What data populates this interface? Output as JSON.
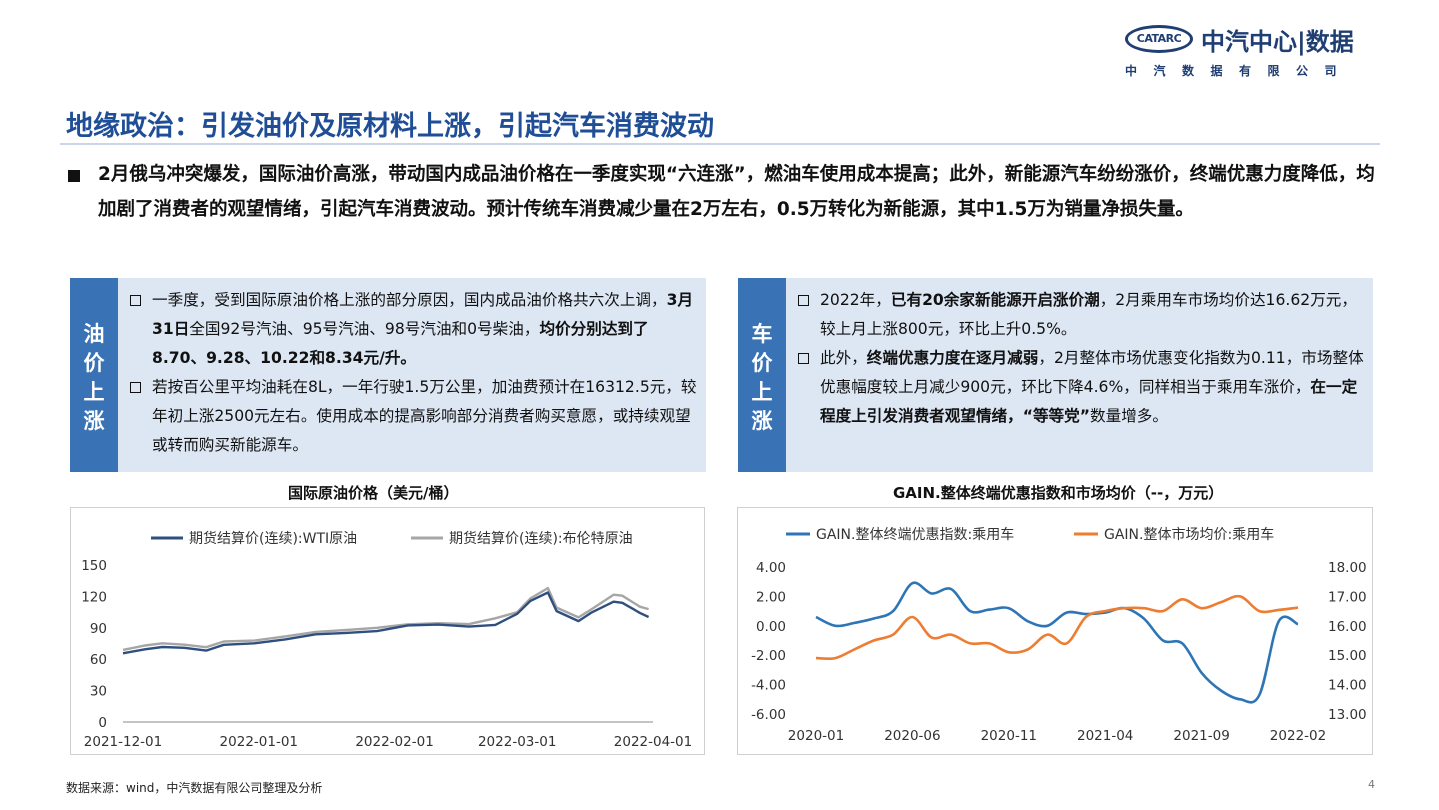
{
  "header": {
    "logo_mark": "CATARC",
    "brand": "中汽中心|数据",
    "subtitle": "中汽数据有限公司"
  },
  "title": "地缘政治：引发油价及原材料上涨，引起汽车消费波动",
  "intro": "2月俄乌冲突爆发，国际油价高涨，带动国内成品油价格在一季度实现“六连涨”，燃油车使用成本提高；此外，新能源汽车纷纷涨价，终端优惠力度降低，均加剧了消费者的观望情绪，引起汽车消费波动。预计传统车消费减少量在2万左右，0.5万转化为新能源，其中1.5万为销量净损失量。",
  "panels": {
    "oil": {
      "side": [
        "油",
        "价",
        "上",
        "涨"
      ],
      "p1_a": "一季度，受到国际原油价格上涨的部分原因，国内成品油价格共六次上调，",
      "p1_b": "3月31日",
      "p1_c": "全国92号汽油、95号汽油、98号汽油和0号柴油，",
      "p1_d": "均价分别达到了8.70、9.28、10.22和8.34元/升。",
      "p2": "若按百公里平均油耗在8L，一年行驶1.5万公里，加油费预计在16312.5元，较年初上涨2500元左右。使用成本的提高影响部分消费者购买意愿，或持续观望或转而购买新能源车。"
    },
    "car": {
      "side": [
        "车",
        "价",
        "上",
        "涨"
      ],
      "p1_a": "2022年，",
      "p1_b": "已有20余家新能源开启涨价潮",
      "p1_c": "，2月乘用车市场均价达16.62万元，较上月上涨800元，环比上升0.5%。",
      "p2_a": "此外，",
      "p2_b": "终端优惠力度在逐月减弱",
      "p2_c": "，2月整体市场优惠变化指数为0.11，市场整体优惠幅度较上月减少900元，环比下降4.6%，同样相当于乘用车涨价，",
      "p2_d": "在一定程度上引发消费者观望情绪，“等等党”",
      "p2_e": "数量增多。"
    }
  },
  "chart_data": [
    {
      "type": "line",
      "title": "国际原油价格（美元/桶）",
      "x_ticks": [
        "2021-12-01",
        "2022-01-01",
        "2022-02-01",
        "2022-03-01",
        "2022-04-01"
      ],
      "ylim": [
        0,
        150
      ],
      "y_ticks": [
        0,
        30,
        60,
        90,
        120,
        150
      ],
      "legend_position": "top",
      "series": [
        {
          "name": "期货结算价(连续):WTI原油",
          "color": "#2f4f7f",
          "dates": [
            "2021-12-01",
            "2021-12-06",
            "2021-12-10",
            "2021-12-15",
            "2021-12-20",
            "2021-12-24",
            "2021-12-31",
            "2022-01-07",
            "2022-01-14",
            "2022-01-21",
            "2022-01-28",
            "2022-02-04",
            "2022-02-11",
            "2022-02-18",
            "2022-02-24",
            "2022-03-01",
            "2022-03-04",
            "2022-03-08",
            "2022-03-10",
            "2022-03-15",
            "2022-03-18",
            "2022-03-23",
            "2022-03-25",
            "2022-03-29",
            "2022-03-31"
          ],
          "values": [
            65.6,
            69.5,
            71.7,
            70.9,
            68.2,
            73.8,
            75.2,
            78.9,
            83.8,
            85.1,
            86.8,
            92.3,
            93.1,
            91.1,
            92.8,
            103.4,
            115.7,
            123.7,
            106.0,
            96.4,
            104.7,
            114.9,
            113.9,
            104.2,
            100.3
          ]
        },
        {
          "name": "期货结算价(连续):布伦特原油",
          "color": "#a6a6a6",
          "dates": [
            "2021-12-01",
            "2021-12-06",
            "2021-12-10",
            "2021-12-15",
            "2021-12-20",
            "2021-12-24",
            "2021-12-31",
            "2022-01-07",
            "2022-01-14",
            "2022-01-21",
            "2022-01-28",
            "2022-02-04",
            "2022-02-11",
            "2022-02-18",
            "2022-02-24",
            "2022-03-01",
            "2022-03-04",
            "2022-03-08",
            "2022-03-10",
            "2022-03-15",
            "2022-03-18",
            "2022-03-23",
            "2022-03-25",
            "2022-03-29",
            "2022-03-31"
          ],
          "values": [
            68.9,
            73.1,
            75.2,
            73.9,
            71.5,
            76.9,
            77.8,
            81.8,
            86.1,
            87.9,
            90.0,
            93.3,
            94.4,
            93.5,
            99.1,
            104.9,
            118.1,
            127.9,
            109.3,
            99.9,
            107.9,
            121.6,
            120.7,
            110.2,
            107.9
          ]
        }
      ]
    },
    {
      "type": "line",
      "title": "GAIN.整体终端优惠指数和市场均价（--，万元）",
      "x_ticks": [
        "2020-01",
        "2020-06",
        "2020-11",
        "2021-04",
        "2021-09",
        "2022-02"
      ],
      "y_left": {
        "ticks": [
          "4.00",
          "2.00",
          "0.00",
          "-2.00",
          "-4.00",
          "-6.00"
        ],
        "range": [
          -6,
          4
        ]
      },
      "y_right": {
        "ticks": [
          "18.00",
          "17.00",
          "16.00",
          "15.00",
          "14.00",
          "13.00"
        ],
        "range": [
          13,
          18
        ]
      },
      "legend_position": "top",
      "series": [
        {
          "name": "GAIN.整体终端优惠指数:乘用车",
          "color": "#2e75b6",
          "axis": "left",
          "months": [
            "2020-01",
            "2020-02",
            "2020-03",
            "2020-04",
            "2020-05",
            "2020-06",
            "2020-07",
            "2020-08",
            "2020-09",
            "2020-10",
            "2020-11",
            "2020-12",
            "2021-01",
            "2021-02",
            "2021-03",
            "2021-04",
            "2021-05",
            "2021-06",
            "2021-07",
            "2021-08",
            "2021-09",
            "2021-10",
            "2021-11",
            "2021-12",
            "2022-01",
            "2022-02"
          ],
          "values": [
            0.6,
            0.0,
            0.2,
            0.5,
            1.0,
            2.9,
            2.2,
            2.5,
            1.0,
            1.1,
            1.2,
            0.3,
            0.0,
            0.9,
            0.8,
            0.9,
            1.2,
            0.5,
            -1.0,
            -1.2,
            -3.2,
            -4.4,
            -5.0,
            -4.7,
            0.3,
            0.11
          ]
        },
        {
          "name": "GAIN.整体市场均价:乘用车",
          "color": "#ed7d31",
          "axis": "right",
          "months": [
            "2020-01",
            "2020-02",
            "2020-03",
            "2020-04",
            "2020-05",
            "2020-06",
            "2020-07",
            "2020-08",
            "2020-09",
            "2020-10",
            "2020-11",
            "2020-12",
            "2021-01",
            "2021-02",
            "2021-03",
            "2021-04",
            "2021-05",
            "2021-06",
            "2021-07",
            "2021-08",
            "2021-09",
            "2021-10",
            "2021-11",
            "2021-12",
            "2022-01",
            "2022-02"
          ],
          "values": [
            14.9,
            14.9,
            15.2,
            15.5,
            15.7,
            16.3,
            15.6,
            15.7,
            15.4,
            15.4,
            15.1,
            15.2,
            15.7,
            15.4,
            16.3,
            16.5,
            16.6,
            16.6,
            16.5,
            16.9,
            16.6,
            16.8,
            17.0,
            16.5,
            16.54,
            16.62
          ]
        }
      ]
    }
  ],
  "footer": {
    "source": "数据来源：wind，中汽数据有限公司整理及分析",
    "page": "4"
  }
}
